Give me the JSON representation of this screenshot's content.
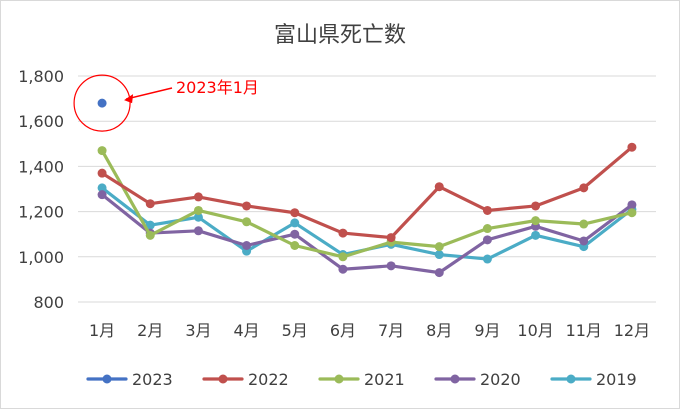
{
  "chart_data": {
    "type": "line",
    "title": "富山県死亡数",
    "categories": [
      "1月",
      "2月",
      "3月",
      "4月",
      "5月",
      "6月",
      "7月",
      "8月",
      "9月",
      "10月",
      "11月",
      "12月"
    ],
    "yticks": [
      "800",
      "1,000",
      "1,200",
      "1,400",
      "1,600",
      "1,800"
    ],
    "ylim": [
      800,
      1800
    ],
    "grid": true,
    "legend_position": "bottom",
    "series": [
      {
        "name": "2023",
        "color": "#4472C4",
        "values": [
          1680,
          null,
          null,
          null,
          null,
          null,
          null,
          null,
          null,
          null,
          null,
          null
        ]
      },
      {
        "name": "2022",
        "color": "#C0504D",
        "values": [
          1370,
          1235,
          1265,
          1225,
          1195,
          1105,
          1085,
          1310,
          1205,
          1225,
          1305,
          1485
        ]
      },
      {
        "name": "2021",
        "color": "#9BBB59",
        "values": [
          1470,
          1095,
          1205,
          1155,
          1050,
          1000,
          1065,
          1045,
          1125,
          1160,
          1145,
          1195
        ]
      },
      {
        "name": "2020",
        "color": "#8064A2",
        "values": [
          1275,
          1105,
          1115,
          1050,
          1100,
          945,
          960,
          930,
          1075,
          1135,
          1070,
          1230
        ]
      },
      {
        "name": "2019",
        "color": "#4BACC6",
        "values": [
          1305,
          1140,
          1175,
          1025,
          1150,
          1010,
          1055,
          1010,
          990,
          1095,
          1045,
          1210
        ]
      }
    ],
    "annotation": {
      "text": "2023年1月",
      "color": "#FF0000",
      "target_series": "2023",
      "target_index": 0
    }
  }
}
